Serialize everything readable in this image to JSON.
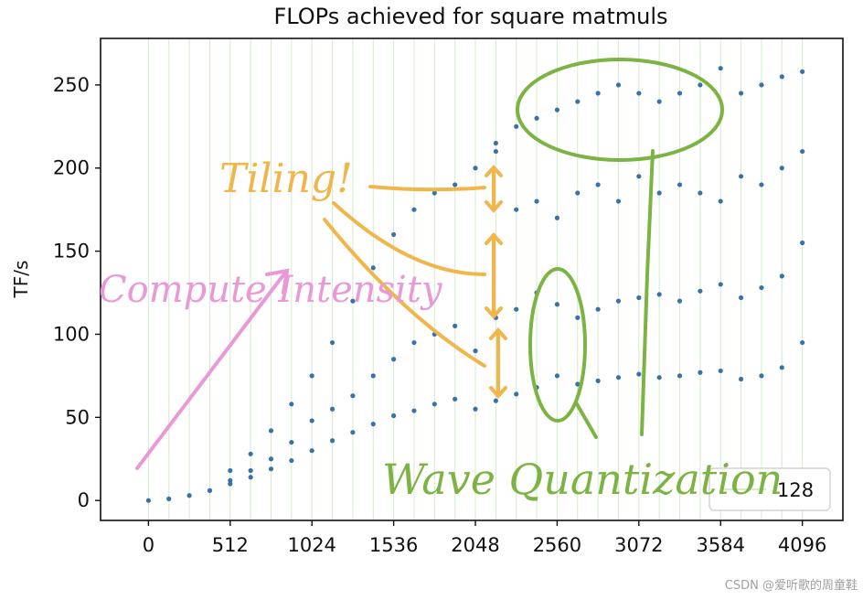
{
  "chart_data": {
    "type": "scatter",
    "title": "FLOPs achieved for square matmuls",
    "xlabel": "",
    "ylabel": "TF/s",
    "xlim": [
      -300,
      4350
    ],
    "ylim": [
      -12,
      278
    ],
    "xticks": [
      0,
      512,
      1024,
      1536,
      2048,
      2560,
      3072,
      3584,
      4096
    ],
    "xtick_labels": [
      "0",
      "512",
      "1024",
      "1536",
      "2048",
      "2560",
      "3072",
      "3584",
      "4096"
    ],
    "yticks": [
      0,
      50,
      100,
      150,
      200,
      250
    ],
    "ytick_labels": [
      "0",
      "50",
      "100",
      "150",
      "200",
      "250"
    ],
    "vertical_gridline_spacing": 128,
    "grid": "vertical lines every 128",
    "legend": {
      "label": "128",
      "placement": "bottom-right"
    },
    "series_color": "#3a72a8",
    "series": [
      {
        "name": "",
        "role": "lower dense band",
        "x": [
          0,
          128,
          256,
          384,
          512,
          640,
          768,
          896,
          1024,
          1152,
          1280,
          1408,
          1536,
          1664,
          1792,
          1920,
          2048,
          2176,
          2304,
          2432,
          2560,
          2688,
          2816,
          2944,
          3072,
          3200,
          3328,
          3456,
          3584,
          3712,
          3840,
          3968,
          4096
        ],
        "y": [
          0,
          1,
          3,
          6,
          10,
          14,
          19,
          24,
          30,
          36,
          41,
          46,
          51,
          54,
          58,
          61,
          55,
          60,
          64,
          68,
          75,
          70,
          72,
          74,
          76,
          74,
          75,
          77,
          78,
          73,
          75,
          80,
          95
        ]
      },
      {
        "name": "",
        "role": "middle dense band",
        "x": [
          384,
          512,
          640,
          768,
          896,
          1024,
          1152,
          1280,
          1408,
          1536,
          1664,
          1792,
          1920,
          2048,
          2176,
          2304,
          2432,
          2560,
          2688,
          2816,
          2944,
          3072,
          3200,
          3328,
          3456,
          3584,
          3712,
          3840,
          3968,
          4096
        ],
        "y": [
          6,
          12,
          18,
          25,
          35,
          48,
          55,
          63,
          75,
          85,
          95,
          100,
          105,
          90,
          110,
          115,
          125,
          118,
          110,
          115,
          120,
          122,
          124,
          120,
          126,
          130,
          122,
          128,
          135,
          155
        ]
      },
      {
        "name": "",
        "role": "sparse upper points",
        "x": [
          512,
          640,
          768,
          896,
          1024,
          1152,
          1280,
          1408,
          1536,
          1664,
          1792,
          1920,
          2048,
          2176,
          2304,
          2432,
          2560,
          2688,
          2816,
          2944,
          3072,
          3200,
          3328,
          3456,
          3584,
          3712,
          3840,
          3968,
          4096
        ],
        "y": [
          18,
          28,
          42,
          58,
          75,
          95,
          120,
          140,
          160,
          175,
          185,
          190,
          200,
          210,
          175,
          180,
          170,
          185,
          190,
          180,
          195,
          185,
          190,
          185,
          180,
          195,
          190,
          200,
          210
        ]
      },
      {
        "name": "",
        "role": "sparse top points",
        "x": [
          2176,
          2304,
          2432,
          2560,
          2688,
          2816,
          2944,
          3072,
          3200,
          3328,
          3456,
          3584,
          3712,
          3840,
          3968,
          4096
        ],
        "y": [
          215,
          225,
          230,
          235,
          240,
          245,
          250,
          245,
          240,
          245,
          250,
          260,
          245,
          250,
          255,
          258
        ]
      }
    ],
    "annotations": [
      {
        "text": "Tiling!",
        "color": "#f0b64c"
      },
      {
        "text": "Compute Intensity",
        "color": "#e99ad6"
      },
      {
        "text": "Wave Quantization",
        "color": "#7cb342"
      }
    ]
  },
  "watermark": "CSDN @爱听歌的周童鞋",
  "colors": {
    "tiling": "#f0b64c",
    "compute": "#e99ad6",
    "wave": "#7cb342",
    "grid": "#d6ead0",
    "points": "#3a72a8"
  }
}
